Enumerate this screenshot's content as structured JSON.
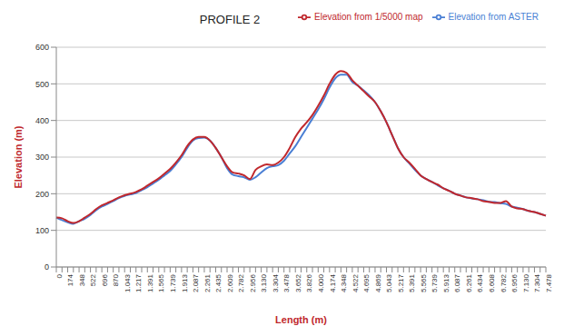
{
  "chart_data": {
    "type": "line",
    "title": "PROFILE 2",
    "x_label": "Length (m)",
    "y_label": "Elevation (m)",
    "categories": [
      "0",
      null,
      "174",
      null,
      "348",
      null,
      "522",
      null,
      "696",
      null,
      "870",
      null,
      "1.043",
      null,
      "1.217",
      null,
      "1.391",
      null,
      "1.565",
      null,
      "1.739",
      null,
      "1.913",
      null,
      "2.087",
      null,
      "2.261",
      null,
      "2.435",
      null,
      "2.609",
      null,
      "2.782",
      null,
      "2.956",
      null,
      "3.130",
      null,
      "3.304",
      null,
      "3.478",
      null,
      "3.652",
      null,
      "3.826",
      null,
      "4.000",
      null,
      "4.174",
      null,
      "4.348",
      null,
      "4.522",
      null,
      "4.695",
      null,
      "4.869",
      null,
      "5.043",
      null,
      "5.217",
      null,
      "5.391",
      null,
      "5.565",
      null,
      "5.739",
      null,
      "5.913",
      null,
      "6.087",
      null,
      "6.261",
      null,
      "6.434",
      null,
      "6.608",
      null,
      "6.782",
      null,
      "6.956",
      null,
      "7.130",
      null,
      "7.304",
      null,
      "7.478"
    ],
    "series": [
      {
        "name": "Elevation from ASTER",
        "color": "#4a7fd4",
        "values": [
          135,
          128,
          122,
          118,
          125,
          132,
          142,
          155,
          165,
          172,
          180,
          188,
          194,
          198,
          202,
          210,
          218,
          228,
          238,
          250,
          262,
          280,
          300,
          325,
          345,
          352,
          353,
          345,
          325,
          300,
          270,
          252,
          248,
          245,
          238,
          245,
          258,
          270,
          275,
          278,
          290,
          310,
          330,
          355,
          380,
          405,
          430,
          458,
          490,
          515,
          525,
          525,
          505,
          495,
          482,
          468,
          450,
          425,
          395,
          360,
          325,
          300,
          283,
          265,
          250,
          240,
          232,
          223,
          215,
          208,
          200,
          195,
          190,
          187,
          185,
          182,
          178,
          177,
          174,
          172,
          165,
          162,
          158,
          153,
          150,
          145,
          140
        ]
      },
      {
        "name": "Elevation from 1/5000 map",
        "color": "#c0282d",
        "values": [
          135,
          133,
          125,
          120,
          125,
          135,
          145,
          158,
          168,
          175,
          182,
          190,
          196,
          200,
          205,
          212,
          222,
          232,
          242,
          255,
          268,
          285,
          305,
          330,
          348,
          355,
          355,
          345,
          325,
          300,
          275,
          258,
          255,
          250,
          240,
          265,
          275,
          280,
          278,
          285,
          300,
          325,
          355,
          378,
          395,
          415,
          440,
          468,
          500,
          525,
          535,
          530,
          510,
          495,
          480,
          465,
          450,
          425,
          395,
          360,
          325,
          300,
          285,
          268,
          250,
          240,
          232,
          225,
          215,
          208,
          200,
          195,
          190,
          188,
          185,
          180,
          178,
          175,
          175,
          180,
          165,
          160,
          158,
          153,
          150,
          145,
          140
        ]
      }
    ],
    "ylim": [
      0,
      600
    ],
    "yticks": [
      0,
      100,
      200,
      300,
      400,
      500,
      600
    ],
    "grid": true,
    "legend": "top right",
    "marker": "none",
    "line_style": "solid"
  }
}
